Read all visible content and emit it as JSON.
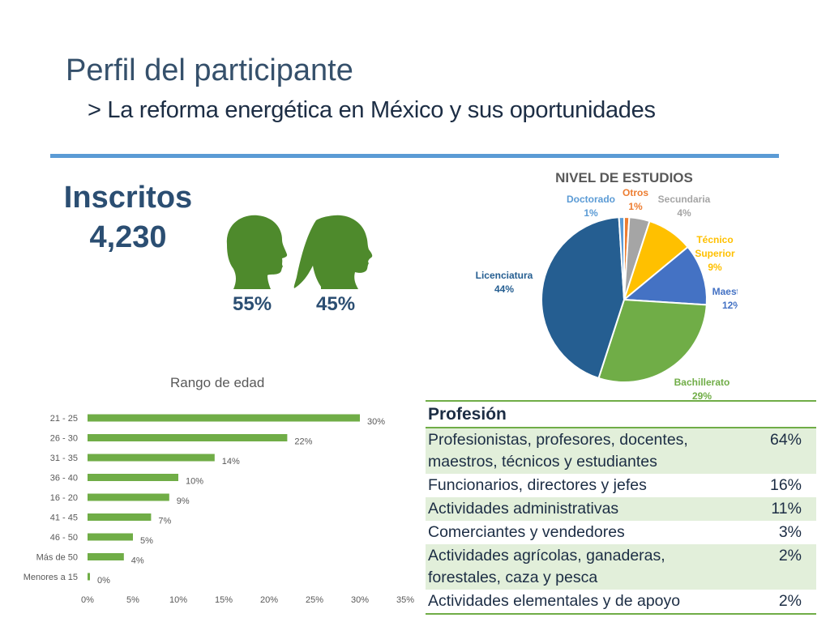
{
  "header": {
    "title": "Perfil del participante",
    "subtitle": "> La reforma energética en México y sus oportunidades"
  },
  "inscritos": {
    "label": "Inscritos",
    "count": "4,230",
    "male_pct": "55%",
    "female_pct": "45%"
  },
  "colors": {
    "accent": "#5b9bd5",
    "green": "#70ad47",
    "head_green": "#4e8a2c",
    "navy": "#2b4e72"
  },
  "icons": [
    "male-head-icon",
    "female-head-icon"
  ],
  "chart_data": [
    {
      "type": "pie",
      "title": "NIVEL DE ESTUDIOS",
      "slices": [
        {
          "label": "Otros",
          "value": 1,
          "display": "1%",
          "color": "#ed7d31"
        },
        {
          "label": "Secundaria",
          "value": 4,
          "display": "4%",
          "color": "#a5a5a5"
        },
        {
          "label": "Técnico Superior",
          "value": 9,
          "display": "9%",
          "color": "#ffc000"
        },
        {
          "label": "Maestria",
          "value": 12,
          "display": "12%",
          "color": "#4472c4"
        },
        {
          "label": "Bachillerato",
          "value": 29,
          "display": "29%",
          "color": "#70ad47"
        },
        {
          "label": "Licenciatura",
          "value": 44,
          "display": "44%",
          "color": "#255e91"
        },
        {
          "label": "Doctorado",
          "value": 1,
          "display": "1%",
          "color": "#5b9bd5"
        }
      ]
    },
    {
      "type": "bar",
      "orientation": "horizontal",
      "title": "Rango de edad",
      "categories": [
        "21 - 25",
        "26 - 30",
        "31 - 35",
        "36 - 40",
        "16 - 20",
        "41 - 45",
        "46 - 50",
        "Más de 50",
        "Menores a 15"
      ],
      "values": [
        30,
        22,
        14,
        10,
        9,
        7,
        5,
        4,
        0
      ],
      "value_labels": [
        "30%",
        "22%",
        "14%",
        "10%",
        "9%",
        "7%",
        "5%",
        "4%",
        "0%"
      ],
      "xlim": [
        0,
        35
      ],
      "xticks": [
        "0%",
        "5%",
        "10%",
        "15%",
        "20%",
        "25%",
        "30%",
        "35%"
      ],
      "color": "#70ad47"
    },
    {
      "type": "table",
      "header": "Profesión",
      "rows": [
        {
          "label": "Profesionistas, profesores, docentes, maestros, técnicos y estudiantes",
          "value": "64%"
        },
        {
          "label": "Funcionarios, directores y jefes",
          "value": "16%"
        },
        {
          "label": "Actividades administrativas",
          "value": "11%"
        },
        {
          "label": "Comerciantes y vendedores",
          "value": "3%"
        },
        {
          "label": "Actividades agrícolas, ganaderas, forestales, caza y pesca",
          "value": "2%"
        },
        {
          "label": "Actividades elementales y de apoyo",
          "value": "2%"
        }
      ]
    }
  ]
}
